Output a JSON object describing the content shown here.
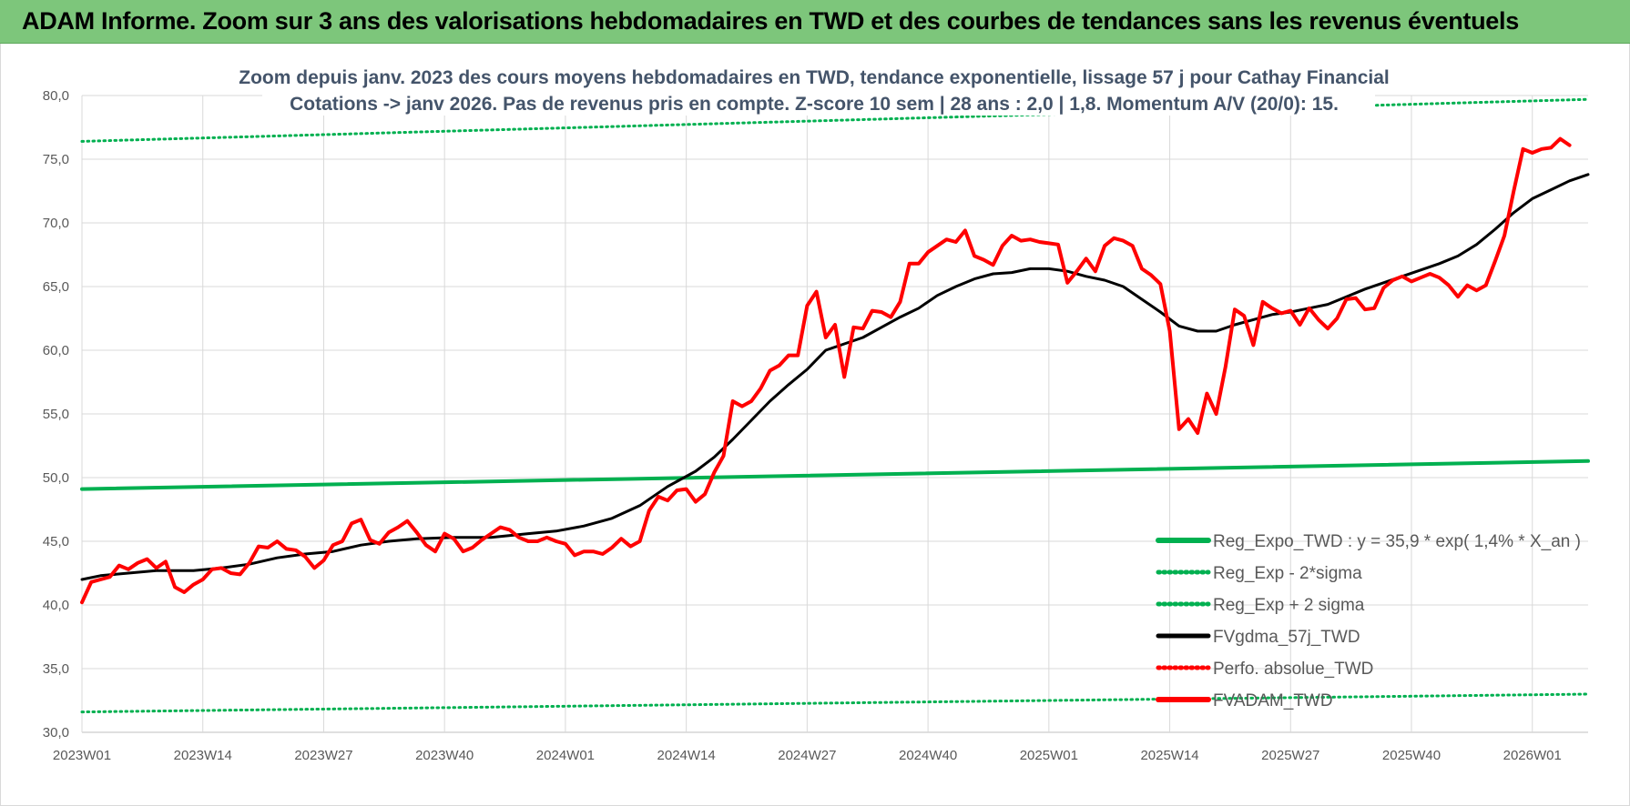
{
  "banner": {
    "title": "ADAM Informe. Zoom sur 3 ans des valorisations hebdomadaires en TWD et des courbes de tendances sans les revenus éventuels"
  },
  "chart_data": {
    "type": "line",
    "title_lines": [
      "Zoom depuis janv. 2023 des cours moyens hebdomadaires en TWD, tendance exponentielle, lissage 57 j pour Cathay Financial",
      "Cotations -> janv 2026. Pas de revenus pris en compte. Z-score 10 sem  | 28 ans : 2,0 | 1,8. Momentum A/V (20/0): 15."
    ],
    "ylim": [
      30,
      80
    ],
    "y_ticks": [
      "30,0",
      "35,0",
      "40,0",
      "45,0",
      "50,0",
      "55,0",
      "60,0",
      "65,0",
      "70,0",
      "75,0",
      "80,0"
    ],
    "x_tick_labels": [
      "2023W01",
      "2023W14",
      "2023W27",
      "2023W40",
      "2024W01",
      "2024W14",
      "2024W27",
      "2024W40",
      "2025W01",
      "2025W14",
      "2025W27",
      "2025W40",
      "2026W01"
    ],
    "x_tick_weeks": [
      0,
      13,
      26,
      39,
      52,
      65,
      78,
      91,
      104,
      117,
      130,
      143,
      156
    ],
    "x_range_weeks": [
      0,
      162
    ],
    "grid": true,
    "legend_position": "bottom-right",
    "series": [
      {
        "name": "Reg_Expo_TWD : y = 35,9 * exp( 1,4% *  X_an )",
        "color": "#00b050",
        "style": "solid-thick",
        "points": [
          [
            0,
            49.1
          ],
          [
            162,
            51.3
          ]
        ]
      },
      {
        "name": "Reg_Exp - 2*sigma",
        "color": "#00b050",
        "style": "dotted",
        "points": [
          [
            0,
            31.6
          ],
          [
            162,
            33.0
          ]
        ]
      },
      {
        "name": "Reg_Exp + 2 sigma",
        "color": "#00b050",
        "style": "dotted",
        "points": [
          [
            0,
            76.4
          ],
          [
            162,
            79.7
          ]
        ]
      },
      {
        "name": "FVgdma_57j_TWD",
        "color": "#000000",
        "style": "solid",
        "points": [
          [
            0,
            42.0
          ],
          [
            2,
            42.3
          ],
          [
            5,
            42.5
          ],
          [
            8,
            42.7
          ],
          [
            12,
            42.7
          ],
          [
            15,
            42.9
          ],
          [
            18,
            43.2
          ],
          [
            21,
            43.7
          ],
          [
            24,
            44.0
          ],
          [
            27,
            44.2
          ],
          [
            30,
            44.7
          ],
          [
            33,
            45.0
          ],
          [
            36,
            45.2
          ],
          [
            40,
            45.3
          ],
          [
            44,
            45.3
          ],
          [
            48,
            45.6
          ],
          [
            51,
            45.8
          ],
          [
            54,
            46.2
          ],
          [
            57,
            46.8
          ],
          [
            60,
            47.8
          ],
          [
            63,
            49.3
          ],
          [
            66,
            50.5
          ],
          [
            68,
            51.6
          ],
          [
            70,
            53.0
          ],
          [
            72,
            54.5
          ],
          [
            74,
            56.0
          ],
          [
            76,
            57.3
          ],
          [
            78,
            58.5
          ],
          [
            80,
            60.0
          ],
          [
            82,
            60.5
          ],
          [
            84,
            61.0
          ],
          [
            86,
            61.8
          ],
          [
            88,
            62.6
          ],
          [
            90,
            63.3
          ],
          [
            92,
            64.3
          ],
          [
            94,
            65.0
          ],
          [
            96,
            65.6
          ],
          [
            98,
            66.0
          ],
          [
            100,
            66.1
          ],
          [
            102,
            66.4
          ],
          [
            104,
            66.4
          ],
          [
            106,
            66.2
          ],
          [
            108,
            65.8
          ],
          [
            110,
            65.5
          ],
          [
            112,
            65.0
          ],
          [
            114,
            64.0
          ],
          [
            116,
            63.0
          ],
          [
            118,
            61.9
          ],
          [
            120,
            61.5
          ],
          [
            122,
            61.5
          ],
          [
            124,
            62.0
          ],
          [
            126,
            62.4
          ],
          [
            128,
            62.8
          ],
          [
            130,
            63.0
          ],
          [
            132,
            63.3
          ],
          [
            134,
            63.6
          ],
          [
            136,
            64.2
          ],
          [
            138,
            64.8
          ],
          [
            140,
            65.3
          ],
          [
            142,
            65.8
          ],
          [
            144,
            66.3
          ],
          [
            146,
            66.8
          ],
          [
            148,
            67.4
          ],
          [
            150,
            68.3
          ],
          [
            152,
            69.5
          ],
          [
            154,
            70.8
          ],
          [
            156,
            71.9
          ],
          [
            158,
            72.6
          ],
          [
            160,
            73.3
          ],
          [
            162,
            73.8
          ]
        ]
      },
      {
        "name": "Perfo. absolue_TWD",
        "color": "#ff0000",
        "style": "dotted",
        "points": []
      },
      {
        "name": "FVADAM_TWD",
        "color": "#ff0000",
        "style": "solid-thick",
        "points": [
          [
            0,
            40.2
          ],
          [
            1,
            41.8
          ],
          [
            2,
            42.0
          ],
          [
            3,
            42.2
          ],
          [
            4,
            43.1
          ],
          [
            5,
            42.8
          ],
          [
            6,
            43.3
          ],
          [
            7,
            43.6
          ],
          [
            8,
            42.9
          ],
          [
            9,
            43.4
          ],
          [
            10,
            41.4
          ],
          [
            11,
            41.0
          ],
          [
            12,
            41.6
          ],
          [
            13,
            42.0
          ],
          [
            14,
            42.8
          ],
          [
            15,
            42.9
          ],
          [
            16,
            42.5
          ],
          [
            17,
            42.4
          ],
          [
            18,
            43.3
          ],
          [
            19,
            44.6
          ],
          [
            20,
            44.5
          ],
          [
            21,
            45.0
          ],
          [
            22,
            44.4
          ],
          [
            23,
            44.3
          ],
          [
            24,
            43.8
          ],
          [
            25,
            42.9
          ],
          [
            26,
            43.5
          ],
          [
            27,
            44.7
          ],
          [
            28,
            45.0
          ],
          [
            29,
            46.4
          ],
          [
            30,
            46.7
          ],
          [
            31,
            45.1
          ],
          [
            32,
            44.8
          ],
          [
            33,
            45.7
          ],
          [
            34,
            46.1
          ],
          [
            35,
            46.6
          ],
          [
            36,
            45.7
          ],
          [
            37,
            44.7
          ],
          [
            38,
            44.2
          ],
          [
            39,
            45.6
          ],
          [
            40,
            45.2
          ],
          [
            41,
            44.2
          ],
          [
            42,
            44.5
          ],
          [
            43,
            45.1
          ],
          [
            44,
            45.6
          ],
          [
            45,
            46.1
          ],
          [
            46,
            45.9
          ],
          [
            47,
            45.3
          ],
          [
            48,
            45.0
          ],
          [
            49,
            45.0
          ],
          [
            50,
            45.3
          ],
          [
            51,
            45.0
          ],
          [
            52,
            44.8
          ],
          [
            53,
            43.9
          ],
          [
            54,
            44.2
          ],
          [
            55,
            44.2
          ],
          [
            56,
            44.0
          ],
          [
            57,
            44.5
          ],
          [
            58,
            45.2
          ],
          [
            59,
            44.6
          ],
          [
            60,
            45.0
          ],
          [
            61,
            47.4
          ],
          [
            62,
            48.5
          ],
          [
            63,
            48.2
          ],
          [
            64,
            49.0
          ],
          [
            65,
            49.1
          ],
          [
            66,
            48.1
          ],
          [
            67,
            48.7
          ],
          [
            68,
            50.4
          ],
          [
            69,
            51.7
          ],
          [
            70,
            56.0
          ],
          [
            71,
            55.6
          ],
          [
            72,
            56.0
          ],
          [
            73,
            57.0
          ],
          [
            74,
            58.4
          ],
          [
            75,
            58.8
          ],
          [
            76,
            59.6
          ],
          [
            77,
            59.6
          ],
          [
            78,
            63.5
          ],
          [
            79,
            64.6
          ],
          [
            80,
            61.0
          ],
          [
            81,
            62.0
          ],
          [
            82,
            57.9
          ],
          [
            83,
            61.8
          ],
          [
            84,
            61.7
          ],
          [
            85,
            63.1
          ],
          [
            86,
            63.0
          ],
          [
            87,
            62.6
          ],
          [
            88,
            63.8
          ],
          [
            89,
            66.8
          ],
          [
            90,
            66.8
          ],
          [
            91,
            67.7
          ],
          [
            92,
            68.2
          ],
          [
            93,
            68.7
          ],
          [
            94,
            68.5
          ],
          [
            95,
            69.4
          ],
          [
            96,
            67.4
          ],
          [
            97,
            67.1
          ],
          [
            98,
            66.7
          ],
          [
            99,
            68.2
          ],
          [
            100,
            69.0
          ],
          [
            101,
            68.6
          ],
          [
            102,
            68.7
          ],
          [
            103,
            68.5
          ],
          [
            104,
            68.4
          ],
          [
            105,
            68.3
          ],
          [
            106,
            65.3
          ],
          [
            107,
            66.2
          ],
          [
            108,
            67.2
          ],
          [
            109,
            66.2
          ],
          [
            110,
            68.2
          ],
          [
            111,
            68.8
          ],
          [
            112,
            68.6
          ],
          [
            113,
            68.2
          ],
          [
            114,
            66.4
          ],
          [
            115,
            65.9
          ],
          [
            116,
            65.2
          ],
          [
            117,
            61.5
          ],
          [
            118,
            53.8
          ],
          [
            119,
            54.6
          ],
          [
            120,
            53.5
          ],
          [
            121,
            56.6
          ],
          [
            122,
            55.0
          ],
          [
            123,
            58.7
          ],
          [
            124,
            63.2
          ],
          [
            125,
            62.7
          ],
          [
            126,
            60.4
          ],
          [
            127,
            63.8
          ],
          [
            128,
            63.3
          ],
          [
            129,
            62.9
          ],
          [
            130,
            63.1
          ],
          [
            131,
            62.0
          ],
          [
            132,
            63.3
          ],
          [
            133,
            62.4
          ],
          [
            134,
            61.7
          ],
          [
            135,
            62.5
          ],
          [
            136,
            64.0
          ],
          [
            137,
            64.1
          ],
          [
            138,
            63.2
          ],
          [
            139,
            63.3
          ],
          [
            140,
            64.9
          ],
          [
            141,
            65.5
          ],
          [
            142,
            65.8
          ],
          [
            143,
            65.4
          ],
          [
            144,
            65.7
          ],
          [
            145,
            66.0
          ],
          [
            146,
            65.7
          ],
          [
            147,
            65.1
          ],
          [
            148,
            64.2
          ],
          [
            149,
            65.1
          ],
          [
            150,
            64.7
          ],
          [
            151,
            65.1
          ],
          [
            152,
            67.0
          ],
          [
            153,
            69.0
          ],
          [
            154,
            72.5
          ],
          [
            155,
            75.8
          ],
          [
            156,
            75.5
          ],
          [
            157,
            75.8
          ],
          [
            158,
            75.9
          ],
          [
            159,
            76.6
          ],
          [
            160,
            76.1
          ]
        ]
      }
    ]
  }
}
